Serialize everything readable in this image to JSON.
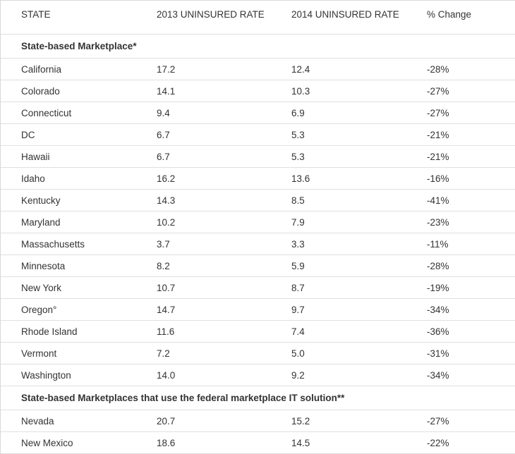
{
  "colors": {
    "text": "#333333",
    "border": "#e0e0e0",
    "background": "#ffffff"
  },
  "chart_data": {
    "type": "table",
    "columns": [
      "STATE",
      "2013 UNINSURED RATE",
      "2014 UNINSURED RATE",
      "% Change"
    ],
    "sections": [
      {
        "label": "State-based Marketplace*",
        "rows": [
          [
            "California",
            "17.2",
            "12.4",
            "-28%"
          ],
          [
            "Colorado",
            "14.1",
            "10.3",
            "-27%"
          ],
          [
            "Connecticut",
            "9.4",
            "6.9",
            "-27%"
          ],
          [
            "DC",
            "6.7",
            "5.3",
            "-21%"
          ],
          [
            "Hawaii",
            "6.7",
            "5.3",
            "-21%"
          ],
          [
            "Idaho",
            "16.2",
            "13.6",
            "-16%"
          ],
          [
            "Kentucky",
            "14.3",
            "8.5",
            "-41%"
          ],
          [
            "Maryland",
            "10.2",
            "7.9",
            "-23%"
          ],
          [
            "Massachusetts",
            "3.7",
            "3.3",
            "-11%"
          ],
          [
            "Minnesota",
            "8.2",
            "5.9",
            "-28%"
          ],
          [
            "New York",
            "10.7",
            "8.7",
            "-19%"
          ],
          [
            "Oregon°",
            "14.7",
            "9.7",
            "-34%"
          ],
          [
            "Rhode Island",
            "11.6",
            "7.4",
            "-36%"
          ],
          [
            "Vermont",
            "7.2",
            "5.0",
            "-31%"
          ],
          [
            "Washington",
            "14.0",
            "9.2",
            "-34%"
          ]
        ]
      },
      {
        "label": "State-based Marketplaces that use the federal marketplace IT solution**",
        "rows": [
          [
            "Nevada",
            "20.7",
            "15.2",
            "-27%"
          ],
          [
            "New Mexico",
            "18.6",
            "14.5",
            "-22%"
          ]
        ]
      }
    ]
  }
}
